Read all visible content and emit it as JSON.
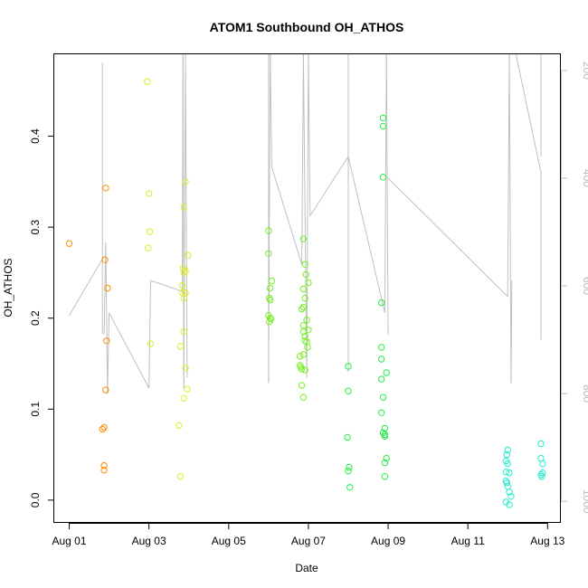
{
  "chart_data": {
    "type": "scatter",
    "title": "ATOM1 Southbound OH_ATHOS",
    "xlabel": "Date",
    "ylabel": "OH_ATHOS",
    "xlim": [
      "2016-07-31T15:00",
      "2016-08-13T08:00"
    ],
    "ylim": [
      -0.025,
      0.49
    ],
    "x_ticks": [
      {
        "date": "2016-08-01",
        "label": "Aug 01"
      },
      {
        "date": "2016-08-03",
        "label": "Aug 03"
      },
      {
        "date": "2016-08-05",
        "label": "Aug 05"
      },
      {
        "date": "2016-08-07",
        "label": "Aug 07"
      },
      {
        "date": "2016-08-09",
        "label": "Aug 09"
      },
      {
        "date": "2016-08-11",
        "label": "Aug 11"
      },
      {
        "date": "2016-08-13",
        "label": "Aug 13"
      }
    ],
    "y_ticks": [
      0.0,
      0.1,
      0.2,
      0.3,
      0.4
    ],
    "y_tick_labels": [
      "0.0",
      "0.1",
      "0.2",
      "0.3",
      "0.4"
    ],
    "right_axis": {
      "reversed": true,
      "ylim": [
        1040,
        170
      ],
      "ticks": [
        200,
        400,
        600,
        800,
        1000
      ],
      "tick_labels": [
        "200",
        "400",
        "600",
        "800",
        "1000"
      ],
      "color": "#bbbbbb"
    },
    "grid": false,
    "series": [
      {
        "color": "#ff8c00",
        "points": [
          {
            "x": "2016-08-01T00:00",
            "y": 0.282
          },
          {
            "x": "2016-08-01T20:00",
            "y": 0.078
          },
          {
            "x": "2016-08-01T21:00",
            "y": 0.08
          },
          {
            "x": "2016-08-01T21:00",
            "y": 0.038
          },
          {
            "x": "2016-08-01T21:00",
            "y": 0.033
          },
          {
            "x": "2016-08-01T21:30",
            "y": 0.264
          },
          {
            "x": "2016-08-01T22:00",
            "y": 0.343
          },
          {
            "x": "2016-08-01T22:00",
            "y": 0.121
          },
          {
            "x": "2016-08-01T23:00",
            "y": 0.233
          },
          {
            "x": "2016-08-01T22:30",
            "y": 0.175
          }
        ]
      },
      {
        "color": "#ddee22",
        "points": [
          {
            "x": "2016-08-02T23:00",
            "y": 0.46
          },
          {
            "x": "2016-08-03T00:00",
            "y": 0.337
          },
          {
            "x": "2016-08-03T00:30",
            "y": 0.295
          },
          {
            "x": "2016-08-02T23:30",
            "y": 0.277
          },
          {
            "x": "2016-08-03T01:00",
            "y": 0.172
          },
          {
            "x": "2016-08-03T19:00",
            "y": 0.169
          },
          {
            "x": "2016-08-03T18:00",
            "y": 0.082
          },
          {
            "x": "2016-08-03T19:00",
            "y": 0.026
          },
          {
            "x": "2016-08-03T21:00",
            "y": 0.112
          },
          {
            "x": "2016-08-03T23:00",
            "y": 0.122
          },
          {
            "x": "2016-08-03T22:00",
            "y": 0.145
          },
          {
            "x": "2016-08-03T21:00",
            "y": 0.185
          },
          {
            "x": "2016-08-03T21:00",
            "y": 0.222
          },
          {
            "x": "2016-08-03T20:00",
            "y": 0.228
          },
          {
            "x": "2016-08-03T22:00",
            "y": 0.228
          },
          {
            "x": "2016-08-03T20:00",
            "y": 0.236
          },
          {
            "x": "2016-08-03T21:00",
            "y": 0.25
          },
          {
            "x": "2016-08-03T22:00",
            "y": 0.252
          },
          {
            "x": "2016-08-03T20:30",
            "y": 0.255
          },
          {
            "x": "2016-08-03T23:30",
            "y": 0.269
          },
          {
            "x": "2016-08-03T21:00",
            "y": 0.322
          },
          {
            "x": "2016-08-03T22:00",
            "y": 0.35
          }
        ]
      },
      {
        "color": "#77ee22",
        "points": [
          {
            "x": "2016-08-06T00:00",
            "y": 0.296
          },
          {
            "x": "2016-08-06T00:00",
            "y": 0.271
          },
          {
            "x": "2016-08-06T02:00",
            "y": 0.241
          },
          {
            "x": "2016-08-06T01:00",
            "y": 0.233
          },
          {
            "x": "2016-08-06T00:30",
            "y": 0.222
          },
          {
            "x": "2016-08-06T01:00",
            "y": 0.22
          },
          {
            "x": "2016-08-06T00:00",
            "y": 0.203
          },
          {
            "x": "2016-08-06T01:00",
            "y": 0.2
          },
          {
            "x": "2016-08-06T00:30",
            "y": 0.196
          },
          {
            "x": "2016-08-06T01:30",
            "y": 0.199
          },
          {
            "x": "2016-08-06T19:00",
            "y": 0.158
          },
          {
            "x": "2016-08-06T19:00",
            "y": 0.148
          },
          {
            "x": "2016-08-06T19:30",
            "y": 0.146
          },
          {
            "x": "2016-08-06T20:00",
            "y": 0.144
          },
          {
            "x": "2016-08-06T20:00",
            "y": 0.126
          },
          {
            "x": "2016-08-06T21:00",
            "y": 0.113
          },
          {
            "x": "2016-08-06T21:00",
            "y": 0.287
          },
          {
            "x": "2016-08-06T22:00",
            "y": 0.259
          },
          {
            "x": "2016-08-06T22:30",
            "y": 0.248
          },
          {
            "x": "2016-08-07T00:00",
            "y": 0.239
          },
          {
            "x": "2016-08-06T21:00",
            "y": 0.232
          },
          {
            "x": "2016-08-06T22:00",
            "y": 0.222
          },
          {
            "x": "2016-08-06T20:00",
            "y": 0.21
          },
          {
            "x": "2016-08-06T21:00",
            "y": 0.212
          },
          {
            "x": "2016-08-06T23:00",
            "y": 0.198
          },
          {
            "x": "2016-08-06T21:00",
            "y": 0.192
          },
          {
            "x": "2016-08-07T00:00",
            "y": 0.187
          },
          {
            "x": "2016-08-06T21:00",
            "y": 0.185
          },
          {
            "x": "2016-08-06T22:00",
            "y": 0.18
          },
          {
            "x": "2016-08-06T22:00",
            "y": 0.175
          },
          {
            "x": "2016-08-06T23:00",
            "y": 0.174
          },
          {
            "x": "2016-08-06T23:30",
            "y": 0.168
          },
          {
            "x": "2016-08-06T21:00",
            "y": 0.16
          },
          {
            "x": "2016-08-06T22:00",
            "y": 0.143
          }
        ]
      },
      {
        "color": "#22ee44",
        "points": [
          {
            "x": "2016-08-08T00:00",
            "y": 0.147
          },
          {
            "x": "2016-08-08T00:00",
            "y": 0.12
          },
          {
            "x": "2016-08-07T23:30",
            "y": 0.069
          },
          {
            "x": "2016-08-08T00:30",
            "y": 0.036
          },
          {
            "x": "2016-08-08T00:00",
            "y": 0.032
          },
          {
            "x": "2016-08-08T01:00",
            "y": 0.014
          },
          {
            "x": "2016-08-08T20:00",
            "y": 0.217
          },
          {
            "x": "2016-08-08T21:00",
            "y": 0.42
          },
          {
            "x": "2016-08-08T21:00",
            "y": 0.411
          },
          {
            "x": "2016-08-08T21:00",
            "y": 0.355
          },
          {
            "x": "2016-08-08T20:00",
            "y": 0.168
          },
          {
            "x": "2016-08-08T20:00",
            "y": 0.155
          },
          {
            "x": "2016-08-08T23:00",
            "y": 0.14
          },
          {
            "x": "2016-08-08T20:00",
            "y": 0.133
          },
          {
            "x": "2016-08-08T21:00",
            "y": 0.113
          },
          {
            "x": "2016-08-08T20:00",
            "y": 0.096
          },
          {
            "x": "2016-08-08T22:00",
            "y": 0.079
          },
          {
            "x": "2016-08-08T21:00",
            "y": 0.074
          },
          {
            "x": "2016-08-08T22:00",
            "y": 0.072
          },
          {
            "x": "2016-08-08T22:00",
            "y": 0.07
          },
          {
            "x": "2016-08-08T23:00",
            "y": 0.046
          },
          {
            "x": "2016-08-08T22:00",
            "y": 0.041
          },
          {
            "x": "2016-08-08T22:00",
            "y": 0.026
          }
        ]
      },
      {
        "color": "#22eecc",
        "points": [
          {
            "x": "2016-08-12T00:00",
            "y": 0.055
          },
          {
            "x": "2016-08-11T23:30",
            "y": 0.05
          },
          {
            "x": "2016-08-11T23:00",
            "y": 0.043
          },
          {
            "x": "2016-08-12T00:00",
            "y": 0.04
          },
          {
            "x": "2016-08-11T23:00",
            "y": 0.031
          },
          {
            "x": "2016-08-12T01:00",
            "y": 0.03
          },
          {
            "x": "2016-08-11T23:00",
            "y": 0.021
          },
          {
            "x": "2016-08-11T23:30",
            "y": 0.019
          },
          {
            "x": "2016-08-12T00:00",
            "y": 0.015
          },
          {
            "x": "2016-08-12T01:00",
            "y": 0.009
          },
          {
            "x": "2016-08-12T02:00",
            "y": 0.004
          },
          {
            "x": "2016-08-11T23:00",
            "y": -0.002
          },
          {
            "x": "2016-08-12T01:00",
            "y": -0.005
          },
          {
            "x": "2016-08-12T20:00",
            "y": 0.062
          },
          {
            "x": "2016-08-12T20:00",
            "y": 0.046
          },
          {
            "x": "2016-08-12T21:00",
            "y": 0.04
          },
          {
            "x": "2016-08-12T21:00",
            "y": 0.03
          },
          {
            "x": "2016-08-12T20:00",
            "y": 0.028
          },
          {
            "x": "2016-08-12T20:30",
            "y": 0.026
          }
        ]
      }
    ],
    "altitude_line": {
      "color": "#c0c0c0",
      "axis": "right",
      "segments": [
        [
          [
            "2016-08-01T00:00",
            655
          ],
          [
            "2016-08-01T21:00",
            545
          ]
        ],
        [
          [
            "2016-08-01T20:00",
            185
          ],
          [
            "2016-08-01T20:00",
            690
          ]
        ],
        [
          [
            "2016-08-01T21:00",
            690
          ],
          [
            "2016-08-01T22:00",
            520
          ]
        ],
        [
          [
            "2016-08-01T22:00",
            520
          ],
          [
            "2016-08-01T23:00",
            800
          ]
        ],
        [
          [
            "2016-08-01T23:00",
            800
          ],
          [
            "2016-08-02T00:00",
            650
          ]
        ],
        [
          [
            "2016-08-02T00:00",
            650
          ],
          [
            "2016-08-03T00:00",
            790
          ]
        ],
        [
          [
            "2016-08-03T00:00",
            790
          ],
          [
            "2016-08-03T01:00",
            590
          ]
        ],
        [
          [
            "2016-08-03T01:00",
            590
          ],
          [
            "2016-08-03T20:00",
            610
          ]
        ],
        [
          [
            "2016-08-03T20:00",
            610
          ],
          [
            "2016-08-03T20:30",
            170
          ]
        ],
        [
          [
            "2016-08-03T20:30",
            170
          ],
          [
            "2016-08-03T21:00",
            790
          ]
        ],
        [
          [
            "2016-08-03T21:00",
            790
          ],
          [
            "2016-08-03T22:00",
            170
          ]
        ],
        [
          [
            "2016-08-03T22:00",
            170
          ],
          [
            "2016-08-03T23:00",
            770
          ]
        ],
        [
          [
            "2016-08-06T00:00",
            170
          ],
          [
            "2016-08-06T00:00",
            780
          ]
        ],
        [
          [
            "2016-08-06T00:00",
            780
          ],
          [
            "2016-08-06T01:00",
            170
          ]
        ],
        [
          [
            "2016-08-06T01:00",
            170
          ],
          [
            "2016-08-06T02:00",
            380
          ]
        ],
        [
          [
            "2016-08-06T02:00",
            380
          ],
          [
            "2016-08-06T20:00",
            560
          ]
        ],
        [
          [
            "2016-08-06T20:00",
            560
          ],
          [
            "2016-08-06T21:00",
            170
          ]
        ],
        [
          [
            "2016-08-06T21:00",
            170
          ],
          [
            "2016-08-06T23:00",
            770
          ]
        ],
        [
          [
            "2016-08-06T23:00",
            770
          ],
          [
            "2016-08-07T00:00",
            170
          ]
        ],
        [
          [
            "2016-08-07T00:00",
            170
          ],
          [
            "2016-08-07T01:00",
            470
          ]
        ],
        [
          [
            "2016-08-07T01:00",
            470
          ],
          [
            "2016-08-08T00:00",
            360
          ]
        ],
        [
          [
            "2016-08-08T00:00",
            170
          ],
          [
            "2016-08-08T00:00",
            760
          ]
        ],
        [
          [
            "2016-08-08T00:00",
            360
          ],
          [
            "2016-08-08T22:00",
            650
          ]
        ],
        [
          [
            "2016-08-08T22:00",
            650
          ],
          [
            "2016-08-08T23:00",
            170
          ]
        ],
        [
          [
            "2016-08-08T23:00",
            170
          ],
          [
            "2016-08-09T00:00",
            690
          ]
        ],
        [
          [
            "2016-08-09T00:00",
            400
          ],
          [
            "2016-08-12T00:00",
            620
          ]
        ],
        [
          [
            "2016-08-12T00:00",
            620
          ],
          [
            "2016-08-12T01:00",
            170
          ]
        ],
        [
          [
            "2016-08-12T01:00",
            170
          ],
          [
            "2016-08-12T02:00",
            780
          ]
        ],
        [
          [
            "2016-08-12T02:00",
            780
          ],
          [
            "2016-08-12T02:30",
            590
          ]
        ],
        [
          [
            "2016-08-12T05:00",
            170
          ],
          [
            "2016-08-12T20:00",
            390
          ]
        ],
        [
          [
            "2016-08-12T20:00",
            390
          ],
          [
            "2016-08-12T20:00",
            700
          ]
        ],
        [
          [
            "2016-08-12T20:00",
            170
          ],
          [
            "2016-08-12T20:00",
            360
          ]
        ]
      ]
    }
  }
}
